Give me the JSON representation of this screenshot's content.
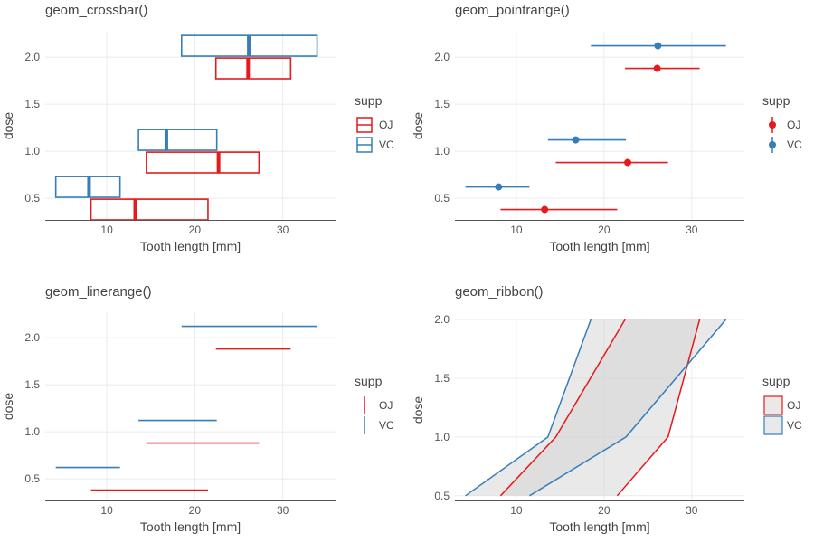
{
  "chart_data": [
    {
      "type": "crossbar",
      "title": "geom_crossbar()",
      "xlabel": "Tooth length [mm]",
      "ylabel": "dose",
      "xlim": [
        3,
        36
      ],
      "ylim": [
        0.27,
        2.27
      ],
      "xticks": [
        {
          "v": 10,
          "label": "10"
        },
        {
          "v": 20,
          "label": "20"
        },
        {
          "v": 30,
          "label": "30"
        }
      ],
      "yticks": [
        {
          "v": 0.5,
          "label": "0.5"
        },
        {
          "v": 1.0,
          "label": "1.0"
        },
        {
          "v": 1.5,
          "label": "1.5"
        },
        {
          "v": 2.0,
          "label": "2.0"
        }
      ],
      "legend_title": "supp",
      "legend_position": "right",
      "series": [
        {
          "name": "OJ",
          "color": "#e41a1c",
          "points": [
            {
              "dose": 0.5,
              "y": 13.23,
              "ymin": 8.2,
              "ymax": 21.5
            },
            {
              "dose": 1.0,
              "y": 22.7,
              "ymin": 14.5,
              "ymax": 27.3
            },
            {
              "dose": 2.0,
              "y": 26.06,
              "ymin": 22.4,
              "ymax": 30.9
            }
          ]
        },
        {
          "name": "VC",
          "color": "#377eb8",
          "points": [
            {
              "dose": 0.5,
              "y": 7.98,
              "ymin": 4.2,
              "ymax": 11.5
            },
            {
              "dose": 1.0,
              "y": 16.77,
              "ymin": 13.6,
              "ymax": 22.5
            },
            {
              "dose": 2.0,
              "y": 26.14,
              "ymin": 18.5,
              "ymax": 33.9
            }
          ]
        }
      ]
    },
    {
      "type": "pointrange",
      "title": "geom_pointrange()",
      "xlabel": "Tooth length [mm]",
      "ylabel": "dose",
      "xlim": [
        3,
        36
      ],
      "ylim": [
        0.27,
        2.27
      ],
      "xticks": [
        {
          "v": 10,
          "label": "10"
        },
        {
          "v": 20,
          "label": "20"
        },
        {
          "v": 30,
          "label": "30"
        }
      ],
      "yticks": [
        {
          "v": 0.5,
          "label": "0.5"
        },
        {
          "v": 1.0,
          "label": "1.0"
        },
        {
          "v": 1.5,
          "label": "1.5"
        },
        {
          "v": 2.0,
          "label": "2.0"
        }
      ],
      "legend_title": "supp",
      "legend_position": "right",
      "series": [
        {
          "name": "OJ",
          "color": "#e41a1c",
          "points": [
            {
              "dose": 0.5,
              "y": 13.23,
              "ymin": 8.2,
              "ymax": 21.5
            },
            {
              "dose": 1.0,
              "y": 22.7,
              "ymin": 14.5,
              "ymax": 27.3
            },
            {
              "dose": 2.0,
              "y": 26.06,
              "ymin": 22.4,
              "ymax": 30.9
            }
          ]
        },
        {
          "name": "VC",
          "color": "#377eb8",
          "points": [
            {
              "dose": 0.5,
              "y": 7.98,
              "ymin": 4.2,
              "ymax": 11.5
            },
            {
              "dose": 1.0,
              "y": 16.77,
              "ymin": 13.6,
              "ymax": 22.5
            },
            {
              "dose": 2.0,
              "y": 26.14,
              "ymin": 18.5,
              "ymax": 33.9
            }
          ]
        }
      ]
    },
    {
      "type": "linerange",
      "title": "geom_linerange()",
      "xlabel": "Tooth length [mm]",
      "ylabel": "dose",
      "xlim": [
        3,
        36
      ],
      "ylim": [
        0.27,
        2.27
      ],
      "xticks": [
        {
          "v": 10,
          "label": "10"
        },
        {
          "v": 20,
          "label": "20"
        },
        {
          "v": 30,
          "label": "30"
        }
      ],
      "yticks": [
        {
          "v": 0.5,
          "label": "0.5"
        },
        {
          "v": 1.0,
          "label": "1.0"
        },
        {
          "v": 1.5,
          "label": "1.5"
        },
        {
          "v": 2.0,
          "label": "2.0"
        }
      ],
      "legend_title": "supp",
      "legend_position": "right",
      "series": [
        {
          "name": "OJ",
          "color": "#e41a1c",
          "points": [
            {
              "dose": 0.5,
              "y": 13.23,
              "ymin": 8.2,
              "ymax": 21.5
            },
            {
              "dose": 1.0,
              "y": 22.7,
              "ymin": 14.5,
              "ymax": 27.3
            },
            {
              "dose": 2.0,
              "y": 26.06,
              "ymin": 22.4,
              "ymax": 30.9
            }
          ]
        },
        {
          "name": "VC",
          "color": "#377eb8",
          "points": [
            {
              "dose": 0.5,
              "y": 7.98,
              "ymin": 4.2,
              "ymax": 11.5
            },
            {
              "dose": 1.0,
              "y": 16.77,
              "ymin": 13.6,
              "ymax": 22.5
            },
            {
              "dose": 2.0,
              "y": 26.14,
              "ymin": 18.5,
              "ymax": 33.9
            }
          ]
        }
      ]
    },
    {
      "type": "ribbon",
      "title": "geom_ribbon()",
      "xlabel": "Tooth length [mm]",
      "ylabel": "dose",
      "xlim": [
        3,
        36
      ],
      "ylim": [
        0.46,
        2.0
      ],
      "xticks": [
        {
          "v": 10,
          "label": "10"
        },
        {
          "v": 20,
          "label": "20"
        },
        {
          "v": 30,
          "label": "30"
        }
      ],
      "yticks": [
        {
          "v": 0.5,
          "label": "0.5"
        },
        {
          "v": 1.0,
          "label": "1.0"
        },
        {
          "v": 1.5,
          "label": "1.5"
        },
        {
          "v": 2.0,
          "label": "2.0"
        }
      ],
      "legend_title": "supp",
      "legend_position": "right",
      "fill": "#d3d3d3",
      "series": [
        {
          "name": "OJ",
          "color": "#e41a1c",
          "points": [
            {
              "dose": 0.5,
              "ymin": 8.2,
              "ymax": 21.5
            },
            {
              "dose": 1.0,
              "ymin": 14.5,
              "ymax": 27.3
            },
            {
              "dose": 2.0,
              "ymin": 22.4,
              "ymax": 30.9
            }
          ]
        },
        {
          "name": "VC",
          "color": "#377eb8",
          "points": [
            {
              "dose": 0.5,
              "ymin": 4.2,
              "ymax": 11.5
            },
            {
              "dose": 1.0,
              "ymin": 13.6,
              "ymax": 22.5
            },
            {
              "dose": 2.0,
              "ymin": 18.5,
              "ymax": 33.9
            }
          ]
        }
      ]
    }
  ]
}
